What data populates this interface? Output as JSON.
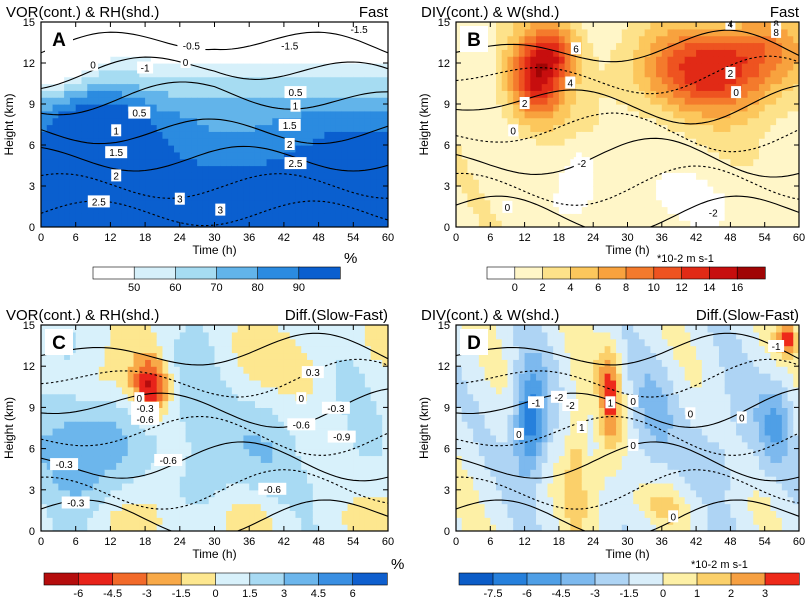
{
  "chart_data": [
    {
      "panel": "A",
      "type": "heatmap",
      "title_left": "VOR(cont.) & RH(shd.)",
      "title_right": "Fast",
      "xlabel": "Time (h)",
      "ylabel": "Height (km)",
      "xlim": [
        0,
        60
      ],
      "ylim": [
        0,
        15
      ],
      "x_ticks": [
        0,
        6,
        12,
        18,
        24,
        30,
        36,
        42,
        48,
        54,
        60
      ],
      "y_ticks": [
        0,
        3,
        6,
        9,
        12,
        15
      ],
      "colorbar": {
        "unit": "%",
        "levels": [
          50,
          60,
          70,
          80,
          90
        ],
        "labels": [
          "50",
          "60",
          "70",
          "80",
          "90"
        ],
        "colors": [
          "#ffffff",
          "#d6f0fa",
          "#a6dcf2",
          "#62b4ea",
          "#2b8be0",
          "#0a5fcf"
        ]
      },
      "contour_labels": [
        "-1.5",
        "-0.5",
        "-1.5",
        "0",
        "-1",
        "0",
        "0.5",
        "0.5",
        "1",
        "1",
        "1.5",
        "1.5",
        "2",
        "2",
        "2.5",
        "2.5",
        "3",
        "3"
      ]
    },
    {
      "panel": "B",
      "type": "heatmap",
      "title_left": "DIV(cont.) & W(shd.)",
      "title_right": "Fast",
      "xlabel": "Time (h)",
      "ylabel": "Height (km)",
      "xlim": [
        0,
        60
      ],
      "ylim": [
        0,
        15
      ],
      "x_ticks": [
        0,
        6,
        12,
        18,
        24,
        30,
        36,
        42,
        48,
        54,
        60
      ],
      "y_ticks": [
        0,
        3,
        6,
        9,
        12,
        15
      ],
      "colorbar": {
        "unit": "*10-2 m s-1",
        "levels": [
          0,
          2,
          4,
          6,
          8,
          10,
          12,
          14,
          16
        ],
        "labels": [
          "0",
          "2",
          "4",
          "6",
          "8",
          "10",
          "12",
          "14",
          "16"
        ],
        "colors": [
          "#ffffff",
          "#fff6c8",
          "#fde28a",
          "#fcc75c",
          "#f8a23e",
          "#f47a2c",
          "#ee5320",
          "#e12a16",
          "#c70e0e",
          "#a00505"
        ]
      },
      "contour_labels": [
        "4",
        "8",
        "6",
        "8",
        "4",
        "2",
        "2",
        "0",
        "0",
        "-2",
        "0",
        "-2"
      ]
    },
    {
      "panel": "C",
      "type": "heatmap",
      "title_left": "VOR(cont.) & RH(shd.)",
      "title_right": "Diff.(Slow-Fast)",
      "xlabel": "Time (h)",
      "ylabel": "Height (km)",
      "xlim": [
        0,
        60
      ],
      "ylim": [
        0,
        15
      ],
      "x_ticks": [
        0,
        6,
        12,
        18,
        24,
        30,
        36,
        42,
        48,
        54,
        60
      ],
      "y_ticks": [
        0,
        3,
        6,
        9,
        12,
        15
      ],
      "colorbar": {
        "unit": "%",
        "levels": [
          -6,
          -4.5,
          -3,
          -1.5,
          0,
          1.5,
          3,
          4.5,
          6
        ],
        "labels": [
          "-6",
          "-4.5",
          "-3",
          "-1.5",
          "0",
          "1.5",
          "3",
          "4.5",
          "6"
        ],
        "colors": [
          "#b50d0d",
          "#e8231a",
          "#f26a2a",
          "#f8a948",
          "#fde78f",
          "#d8f1fb",
          "#a8daf3",
          "#6cb6ec",
          "#3a8fe2",
          "#0f5fce"
        ]
      },
      "contour_labels": [
        "0.3",
        "0",
        "-0.3",
        "-0.6",
        "0",
        "-0.3",
        "-0.6",
        "-0.9",
        "-0.3",
        "-0.6",
        "-0.6",
        "-0.3"
      ]
    },
    {
      "panel": "D",
      "type": "heatmap",
      "title_left": "DIV(cont.) & W(shd.)",
      "title_right": "Diff.(Slow-Fast)",
      "xlabel": "Time (h)",
      "ylabel": "Height (km)",
      "xlim": [
        0,
        60
      ],
      "ylim": [
        0,
        15
      ],
      "x_ticks": [
        0,
        6,
        12,
        18,
        24,
        30,
        36,
        42,
        48,
        54,
        60
      ],
      "y_ticks": [
        0,
        3,
        6,
        9,
        12,
        15
      ],
      "colorbar": {
        "unit": "*10-2 m s-1",
        "levels": [
          -7.5,
          -6,
          -4.5,
          -3,
          -1.5,
          0,
          1,
          2,
          3
        ],
        "labels": [
          "-7.5",
          "-6",
          "-4.5",
          "-3",
          "-1.5",
          "0",
          "1",
          "2",
          "3"
        ],
        "colors": [
          "#0b5cc7",
          "#2680dc",
          "#4f9fe6",
          "#7db9ee",
          "#aed4f4",
          "#d9eefa",
          "#fdf0a6",
          "#fbd06a",
          "#f6a042",
          "#ee2a1a"
        ]
      },
      "contour_labels": [
        "-1",
        "-2",
        "-1",
        "-2",
        "1",
        "0",
        "1",
        "0",
        "0",
        "0",
        "0",
        "0"
      ]
    }
  ]
}
